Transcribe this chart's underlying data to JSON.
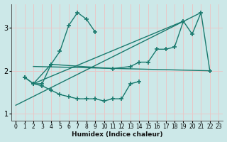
{
  "xlabel": "Humidex (Indice chaleur)",
  "bg_color": "#cce8e8",
  "grid_color": "#e8c8c8",
  "line_color": "#1a7a6e",
  "xlim": [
    -0.5,
    23.5
  ],
  "ylim": [
    0.85,
    3.55
  ],
  "yticks": [
    1,
    2,
    3
  ],
  "xticks": [
    0,
    1,
    2,
    3,
    4,
    5,
    6,
    7,
    8,
    9,
    10,
    11,
    12,
    13,
    14,
    15,
    16,
    17,
    18,
    19,
    20,
    21,
    22,
    23
  ],
  "curve1_x": [
    1,
    2,
    3,
    4,
    5,
    6,
    7,
    8,
    9
  ],
  "curve1_y": [
    1.85,
    1.7,
    1.7,
    2.15,
    2.45,
    3.05,
    3.35,
    3.2,
    2.9
  ],
  "curve2_x": [
    1,
    2,
    3,
    4,
    5,
    6,
    7,
    8,
    9,
    10,
    11,
    12,
    13,
    14
  ],
  "curve2_y": [
    1.85,
    1.7,
    1.65,
    1.55,
    1.45,
    1.4,
    1.35,
    1.35,
    1.35,
    1.3,
    1.35,
    1.35,
    1.7,
    1.75
  ],
  "curve3_x": [
    2,
    4,
    11,
    13,
    14,
    15,
    16,
    17,
    18,
    19,
    20,
    21,
    22
  ],
  "curve3_y": [
    1.7,
    2.15,
    2.05,
    2.1,
    2.2,
    2.2,
    2.5,
    2.5,
    2.55,
    3.15,
    2.85,
    3.35,
    2.0
  ],
  "line1_x": [
    0,
    21
  ],
  "line1_y": [
    1.2,
    3.35
  ],
  "line2_x": [
    2,
    22
  ],
  "line2_y": [
    2.1,
    2.0
  ],
  "line3_x": [
    2,
    19
  ],
  "line3_y": [
    1.7,
    3.15
  ]
}
